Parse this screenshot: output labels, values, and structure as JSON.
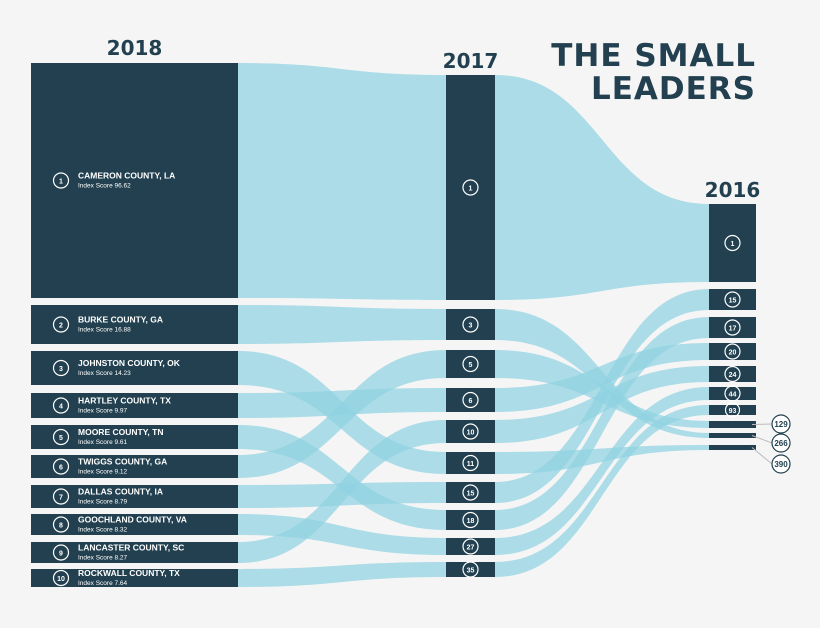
{
  "title": {
    "line1": "THE SMALL",
    "line2": "LEADERS"
  },
  "colors": {
    "box": "#22404f",
    "flow": "#8fd3e2",
    "background": "#f5f5f5",
    "text": "#ffffff"
  },
  "chart_data": {
    "type": "sankey",
    "columns": [
      "2018",
      "2017",
      "2016"
    ],
    "score_label": "Index Score",
    "counties": [
      {
        "name": "CAMERON COUNTY, LA",
        "score": "96.62",
        "rank_2018": "1",
        "rank_2017": "1",
        "rank_2016": "1"
      },
      {
        "name": "BURKE COUNTY, GA",
        "score": "16.88",
        "rank_2018": "2",
        "rank_2017": "3",
        "rank_2016": "266"
      },
      {
        "name": "JOHNSTON COUNTY, OK",
        "score": "14.23",
        "rank_2018": "3",
        "rank_2017": "11",
        "rank_2016": "390"
      },
      {
        "name": "HARTLEY COUNTY, TX",
        "score": "9.97",
        "rank_2018": "4",
        "rank_2017": "6",
        "rank_2016": "20"
      },
      {
        "name": "MOORE COUNTY, TN",
        "score": "9.61",
        "rank_2018": "5",
        "rank_2017": "18",
        "rank_2016": "17"
      },
      {
        "name": "TWIGGS COUNTY, GA",
        "score": "9.12",
        "rank_2018": "6",
        "rank_2017": "5",
        "rank_2016": "129"
      },
      {
        "name": "DALLAS COUNTY, IA",
        "score": "8.79",
        "rank_2018": "7",
        "rank_2017": "15",
        "rank_2016": "15"
      },
      {
        "name": "GOOCHLAND COUNTY, VA",
        "score": "8.32",
        "rank_2018": "8",
        "rank_2017": "27",
        "rank_2016": "44"
      },
      {
        "name": "LANCASTER COUNTY, SC",
        "score": "8.27",
        "rank_2018": "9",
        "rank_2017": "10",
        "rank_2016": "24"
      },
      {
        "name": "ROCKWALL COUNTY, TX",
        "score": "7.64",
        "rank_2018": "10",
        "rank_2017": "35",
        "rank_2016": "93"
      }
    ],
    "ranks_2017_order": [
      "1",
      "3",
      "5",
      "6",
      "10",
      "11",
      "15",
      "18",
      "27",
      "35"
    ],
    "ranks_2016_order": [
      "1",
      "15",
      "17",
      "20",
      "24",
      "44",
      "93",
      "129",
      "266",
      "390"
    ]
  }
}
